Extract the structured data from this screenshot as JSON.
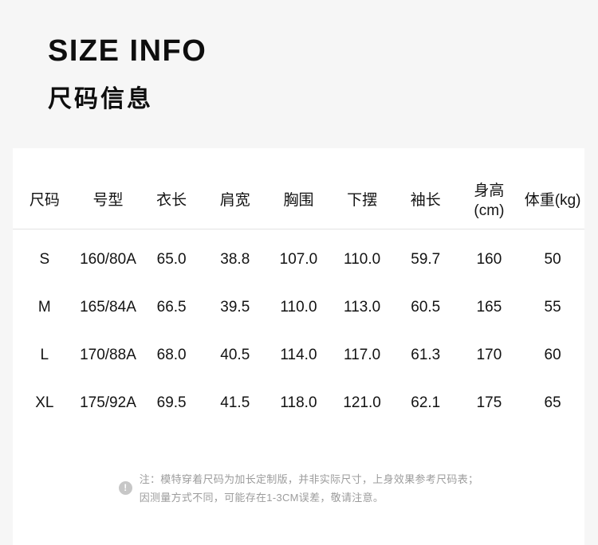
{
  "page": {
    "background_color": "#f6f6f6",
    "card_color": "#ffffff",
    "text_color": "#131313",
    "separator_color": "#e3e3e3",
    "note_color": "#9c9c9c",
    "note_icon_color": "#c7c7c7"
  },
  "header": {
    "title_en": "SIZE INFO",
    "title_zh": "尺码信息"
  },
  "table": {
    "columns": {
      "size": "尺码",
      "model": "号型",
      "length": "衣长",
      "shoulder": "肩宽",
      "chest": "胸围",
      "hem": "下摆",
      "sleeve": "袖长",
      "height_l1": "身高",
      "height_l2": "(cm)",
      "weight": "体重(kg)"
    },
    "rows": [
      {
        "size": "S",
        "model": "160/80A",
        "length": "65.0",
        "shoulder": "38.8",
        "chest": "107.0",
        "hem": "110.0",
        "sleeve": "59.7",
        "height": "160",
        "weight": "50"
      },
      {
        "size": "M",
        "model": "165/84A",
        "length": "66.5",
        "shoulder": "39.5",
        "chest": "110.0",
        "hem": "113.0",
        "sleeve": "60.5",
        "height": "165",
        "weight": "55"
      },
      {
        "size": "L",
        "model": "170/88A",
        "length": "68.0",
        "shoulder": "40.5",
        "chest": "114.0",
        "hem": "117.0",
        "sleeve": "61.3",
        "height": "170",
        "weight": "60"
      },
      {
        "size": "XL",
        "model": "175/92A",
        "length": "69.5",
        "shoulder": "41.5",
        "chest": "118.0",
        "hem": "121.0",
        "sleeve": "62.1",
        "height": "175",
        "weight": "65"
      }
    ]
  },
  "note": {
    "icon": "exclamation-circle-icon",
    "icon_glyph": "!",
    "line1": "注：模特穿着尺码为加长定制版，并非实际尺寸，上身效果参考尺码表；",
    "line2": "因测量方式不同，可能存在1-3CM误差，敬请注意。"
  }
}
